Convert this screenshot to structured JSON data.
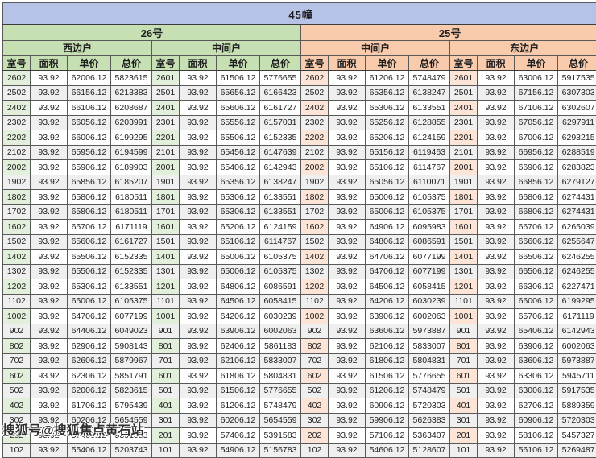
{
  "title": "45幢",
  "watermark": "搜狐号@搜狐焦点黄石站",
  "columns": [
    "室号",
    "面积",
    "单价",
    "总价"
  ],
  "colors": {
    "title_bar": "#b7c3e6",
    "section_green": "#c6e0b4",
    "room_green_light": "#e2efda",
    "section_orange": "#f8cbad",
    "room_orange_light": "#fce4d6",
    "row_stripe": "#efefef",
    "border": "#595959"
  },
  "sections": [
    {
      "building": "26号",
      "units": [
        {
          "type": "西边户",
          "rows": [
            [
              "2602",
              "93.92",
              "62006.12",
              "5823615"
            ],
            [
              "2502",
              "93.92",
              "66156.12",
              "6213383"
            ],
            [
              "2402",
              "93.92",
              "66106.12",
              "6208687"
            ],
            [
              "2302",
              "93.92",
              "66056.12",
              "6203991"
            ],
            [
              "2202",
              "93.92",
              "66006.12",
              "6199295"
            ],
            [
              "2102",
              "93.92",
              "65956.12",
              "6194599"
            ],
            [
              "2002",
              "93.92",
              "65906.12",
              "6189903"
            ],
            [
              "1902",
              "93.92",
              "65856.12",
              "6185207"
            ],
            [
              "1802",
              "93.92",
              "65806.12",
              "6180511"
            ],
            [
              "1702",
              "93.92",
              "65806.12",
              "6180511"
            ],
            [
              "1602",
              "93.92",
              "65706.12",
              "6171119"
            ],
            [
              "1502",
              "93.92",
              "65606.12",
              "6161727"
            ],
            [
              "1402",
              "93.92",
              "65506.12",
              "6152335"
            ],
            [
              "1302",
              "93.92",
              "65506.12",
              "6152335"
            ],
            [
              "1202",
              "93.92",
              "65306.12",
              "6133551"
            ],
            [
              "1102",
              "93.92",
              "65006.12",
              "6105375"
            ],
            [
              "1002",
              "93.92",
              "64706.12",
              "6077199"
            ],
            [
              "902",
              "93.92",
              "64406.12",
              "6049023"
            ],
            [
              "802",
              "93.92",
              "62906.12",
              "5908143"
            ],
            [
              "702",
              "93.92",
              "62606.12",
              "5879967"
            ],
            [
              "602",
              "93.92",
              "62306.12",
              "5851791"
            ],
            [
              "502",
              "93.92",
              "62006.12",
              "5823615"
            ],
            [
              "402",
              "93.92",
              "61706.12",
              "5795439"
            ],
            [
              "302",
              "93.92",
              "60206.12",
              "5654559"
            ],
            [
              "202",
              "93.92",
              "57406.12",
              "5391583"
            ],
            [
              "102",
              "93.92",
              "55406.12",
              "5203743"
            ]
          ]
        },
        {
          "type": "中间户",
          "rows": [
            [
              "2601",
              "93.92",
              "61506.12",
              "5776655"
            ],
            [
              "2501",
              "93.92",
              "65656.12",
              "6166423"
            ],
            [
              "2401",
              "93.92",
              "65606.12",
              "6161727"
            ],
            [
              "2301",
              "93.92",
              "65556.12",
              "6157031"
            ],
            [
              "2201",
              "93.92",
              "65506.12",
              "6152335"
            ],
            [
              "2101",
              "93.92",
              "65456.12",
              "6147639"
            ],
            [
              "2001",
              "93.92",
              "65406.12",
              "6142943"
            ],
            [
              "1901",
              "93.92",
              "65356.12",
              "6138247"
            ],
            [
              "1801",
              "93.92",
              "65306.12",
              "6133551"
            ],
            [
              "1701",
              "93.92",
              "65306.12",
              "6133551"
            ],
            [
              "1601",
              "93.92",
              "65206.12",
              "6124159"
            ],
            [
              "1501",
              "93.92",
              "65106.12",
              "6114767"
            ],
            [
              "1401",
              "93.92",
              "65006.12",
              "6105375"
            ],
            [
              "1301",
              "93.92",
              "65006.12",
              "6105375"
            ],
            [
              "1201",
              "93.92",
              "64806.12",
              "6086591"
            ],
            [
              "1101",
              "93.92",
              "64506.12",
              "6058415"
            ],
            [
              "1001",
              "93.92",
              "64206.12",
              "6030239"
            ],
            [
              "901",
              "93.92",
              "63906.12",
              "6002063"
            ],
            [
              "801",
              "93.92",
              "62406.12",
              "5861183"
            ],
            [
              "701",
              "93.92",
              "62106.12",
              "5833007"
            ],
            [
              "601",
              "93.92",
              "61806.12",
              "5804831"
            ],
            [
              "501",
              "93.92",
              "61506.12",
              "5776655"
            ],
            [
              "401",
              "93.92",
              "61206.12",
              "5748479"
            ],
            [
              "301",
              "93.92",
              "60206.12",
              "5654559"
            ],
            [
              "201",
              "93.92",
              "57406.12",
              "5391583"
            ],
            [
              "101",
              "93.92",
              "54906.12",
              "5156783"
            ]
          ]
        }
      ]
    },
    {
      "building": "25号",
      "units": [
        {
          "type": "中间户",
          "rows": [
            [
              "2602",
              "93.92",
              "61206.12",
              "5748479"
            ],
            [
              "2502",
              "93.92",
              "65356.12",
              "6138247"
            ],
            [
              "2402",
              "93.92",
              "65306.12",
              "6133551"
            ],
            [
              "2302",
              "93.92",
              "65256.12",
              "6128855"
            ],
            [
              "2202",
              "93.92",
              "65206.12",
              "6124159"
            ],
            [
              "2102",
              "93.92",
              "65156.12",
              "6119463"
            ],
            [
              "2002",
              "93.92",
              "65106.12",
              "6114767"
            ],
            [
              "1902",
              "93.92",
              "65056.12",
              "6110071"
            ],
            [
              "1802",
              "93.92",
              "65006.12",
              "6105375"
            ],
            [
              "1702",
              "93.92",
              "65006.12",
              "6105375"
            ],
            [
              "1602",
              "93.92",
              "64906.12",
              "6095983"
            ],
            [
              "1502",
              "93.92",
              "64806.12",
              "6086591"
            ],
            [
              "1402",
              "93.92",
              "64706.12",
              "6077199"
            ],
            [
              "1302",
              "93.92",
              "64706.12",
              "6077199"
            ],
            [
              "1202",
              "93.92",
              "64506.12",
              "6058415"
            ],
            [
              "1102",
              "93.92",
              "64206.12",
              "6030239"
            ],
            [
              "1002",
              "93.92",
              "63906.12",
              "6002063"
            ],
            [
              "902",
              "93.92",
              "63606.12",
              "5973887"
            ],
            [
              "802",
              "93.92",
              "62106.12",
              "5833007"
            ],
            [
              "702",
              "93.92",
              "61806.12",
              "5804831"
            ],
            [
              "602",
              "93.92",
              "61506.12",
              "5776655"
            ],
            [
              "502",
              "93.92",
              "61206.12",
              "5748479"
            ],
            [
              "402",
              "93.92",
              "60906.12",
              "5720303"
            ],
            [
              "302",
              "93.92",
              "59906.12",
              "5626383"
            ],
            [
              "202",
              "93.92",
              "57106.12",
              "5363407"
            ],
            [
              "102",
              "93.92",
              "54606.12",
              "5128607"
            ]
          ]
        },
        {
          "type": "东边户",
          "rows": [
            [
              "2601",
              "93.92",
              "63006.12",
              "5917535"
            ],
            [
              "2501",
              "93.92",
              "67156.12",
              "6307303"
            ],
            [
              "2401",
              "93.92",
              "67106.12",
              "6302607"
            ],
            [
              "2301",
              "93.92",
              "67056.12",
              "6297911"
            ],
            [
              "2201",
              "93.92",
              "67006.12",
              "6293215"
            ],
            [
              "2101",
              "93.92",
              "66956.12",
              "6288519"
            ],
            [
              "2001",
              "93.92",
              "66906.12",
              "6283823"
            ],
            [
              "1901",
              "93.92",
              "66856.12",
              "6279127"
            ],
            [
              "1801",
              "93.92",
              "66806.12",
              "6274431"
            ],
            [
              "1701",
              "93.92",
              "66806.12",
              "6274431"
            ],
            [
              "1601",
              "93.92",
              "66706.12",
              "6265039"
            ],
            [
              "1501",
              "93.92",
              "66606.12",
              "6255647"
            ],
            [
              "1401",
              "93.92",
              "66506.12",
              "6246255"
            ],
            [
              "1301",
              "93.92",
              "66506.12",
              "6246255"
            ],
            [
              "1201",
              "93.92",
              "66306.12",
              "6227471"
            ],
            [
              "1101",
              "93.92",
              "66006.12",
              "6199295"
            ],
            [
              "1001",
              "93.92",
              "65706.12",
              "6171119"
            ],
            [
              "901",
              "93.92",
              "65406.12",
              "6142943"
            ],
            [
              "801",
              "93.92",
              "63906.12",
              "6002063"
            ],
            [
              "701",
              "93.92",
              "63606.12",
              "5973887"
            ],
            [
              "601",
              "93.92",
              "63306.12",
              "5945711"
            ],
            [
              "501",
              "93.92",
              "63006.12",
              "5917535"
            ],
            [
              "401",
              "93.92",
              "62706.12",
              "5889359"
            ],
            [
              "301",
              "93.92",
              "60906.12",
              "5720303"
            ],
            [
              "201",
              "93.92",
              "58106.12",
              "5457327"
            ],
            [
              "101",
              "93.92",
              "56106.12",
              "5269487"
            ]
          ]
        }
      ]
    }
  ]
}
